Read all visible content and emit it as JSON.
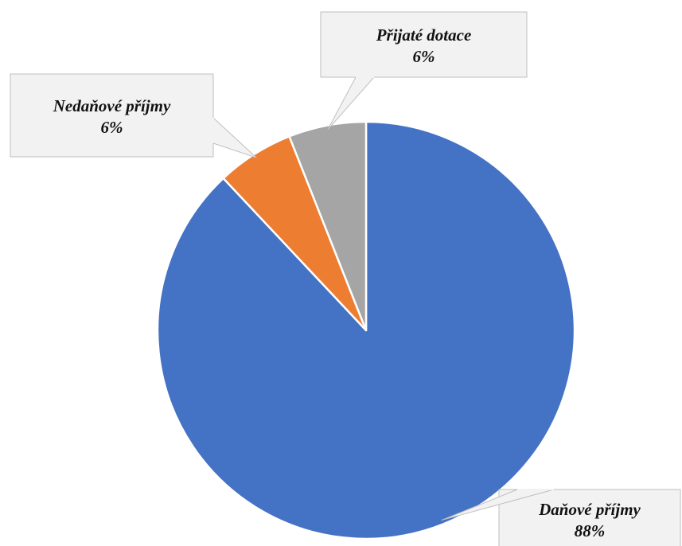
{
  "chart_data": {
    "type": "pie",
    "title": "",
    "start_angle_deg": 0,
    "direction": "clockwise",
    "slices": [
      {
        "label": "Daňové příjmy",
        "value": 88,
        "value_label": "88%",
        "color": "#4472C4"
      },
      {
        "label": "Nedaňové příjmy",
        "value": 6,
        "value_label": "6%",
        "color": "#ED7D31"
      },
      {
        "label": "Přijaté dotace",
        "value": 6,
        "value_label": "6%",
        "color": "#A5A5A5"
      }
    ],
    "legend": "none",
    "data_labels": "callouts"
  }
}
